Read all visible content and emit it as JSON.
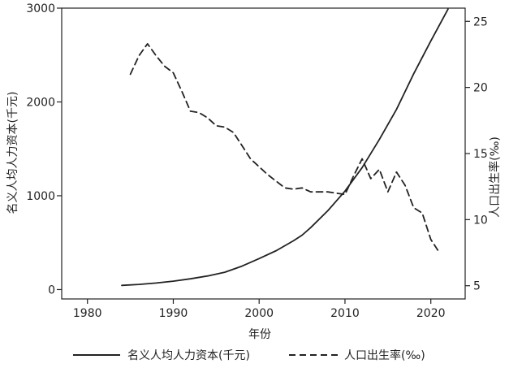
{
  "chart_data": {
    "type": "line",
    "xlabel": "年份",
    "ylabel_left": "名义人均人力资本(千元)",
    "ylabel_right": "人口出生率(‰)",
    "xlim": [
      1977,
      2024
    ],
    "ylim_left": [
      -100,
      3000
    ],
    "ylim_right": [
      4,
      26
    ],
    "xticks": [
      "1980",
      "1990",
      "2000",
      "2010",
      "2020"
    ],
    "yticks_left": [
      "0",
      "1000",
      "2000",
      "3000"
    ],
    "yticks_right": [
      "5",
      "10",
      "15",
      "20",
      "25"
    ],
    "grid": false,
    "legend_position": "bottom",
    "series": [
      {
        "name": "名义人均人力资本(千元)",
        "axis": "left",
        "style": "solid",
        "color": "#222222",
        "x": [
          1984,
          1986,
          1988,
          1990,
          1992,
          1994,
          1996,
          1998,
          2000,
          2002,
          2004,
          2005,
          2006,
          2008,
          2010,
          2012,
          2014,
          2016,
          2018,
          2020,
          2022
        ],
        "y": [
          45,
          55,
          70,
          90,
          115,
          145,
          185,
          250,
          330,
          415,
          520,
          580,
          660,
          840,
          1050,
          1300,
          1600,
          1920,
          2300,
          2650,
          2990
        ]
      },
      {
        "name": "人口出生率(‰)",
        "axis": "right",
        "style": "dashed",
        "color": "#222222",
        "x": [
          1985,
          1986,
          1987,
          1988,
          1989,
          1990,
          1991,
          1992,
          1993,
          1994,
          1995,
          1996,
          1997,
          1998,
          1999,
          2000,
          2001,
          2002,
          2003,
          2004,
          2005,
          2006,
          2007,
          2008,
          2009,
          2010,
          2011,
          2012,
          2013,
          2014,
          2015,
          2016,
          2017,
          2018,
          2019,
          2020,
          2021
        ],
        "y": [
          21.0,
          22.4,
          23.3,
          22.4,
          21.6,
          21.1,
          19.7,
          18.2,
          18.1,
          17.7,
          17.1,
          17.0,
          16.6,
          15.6,
          14.6,
          14.0,
          13.4,
          12.9,
          12.4,
          12.3,
          12.4,
          12.1,
          12.1,
          12.1,
          12.0,
          11.9,
          13.3,
          14.6,
          13.1,
          13.8,
          12.1,
          13.6,
          12.6,
          10.9,
          10.5,
          8.5,
          7.5
        ]
      }
    ]
  }
}
